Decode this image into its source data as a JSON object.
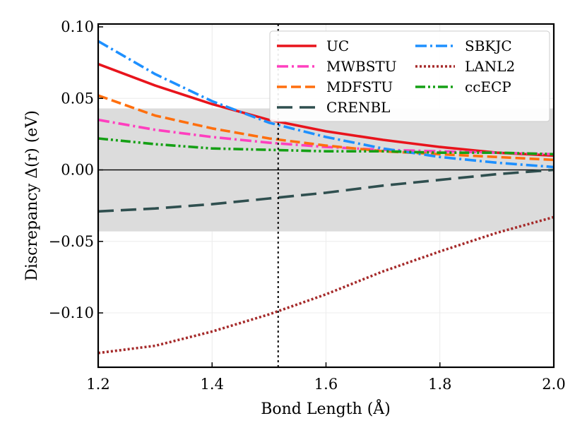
{
  "chart_data": {
    "type": "line",
    "title": "",
    "xlabel": "Bond Length (Å)",
    "ylabel": "Discrepancy Δ(r) (eV)",
    "xlim": [
      1.2,
      2.0
    ],
    "ylim": [
      -0.138,
      0.102
    ],
    "xticks": [
      1.2,
      1.4,
      1.6,
      1.8,
      2.0
    ],
    "xtick_labels": [
      "1.2",
      "1.4",
      "1.6",
      "1.8",
      "2.0"
    ],
    "yticks": [
      -0.1,
      -0.05,
      0.0,
      0.05,
      0.1
    ],
    "ytick_labels": [
      "−0.10",
      "−0.05",
      "0.00",
      "0.05",
      "0.10"
    ],
    "grid": true,
    "legend_position": "top-right",
    "shaded_band": {
      "y_low": -0.043,
      "y_high": 0.043,
      "color": "#dcdcdc"
    },
    "zero_line": 0.0,
    "vertical_line": {
      "x": 1.516,
      "style": "dotted"
    },
    "x": [
      1.2,
      1.3,
      1.4,
      1.5,
      1.6,
      1.7,
      1.8,
      1.9,
      2.0
    ],
    "series": [
      {
        "name": "UC",
        "color": "#e8141c",
        "dash": "solid",
        "values": [
          0.074,
          0.059,
          0.046,
          0.035,
          0.027,
          0.021,
          0.016,
          0.012,
          0.01
        ]
      },
      {
        "name": "MWBSTU",
        "color": "#ff3fbf",
        "dash": "dashdot",
        "values": [
          0.035,
          0.028,
          0.023,
          0.019,
          0.016,
          0.014,
          0.013,
          0.012,
          0.011
        ]
      },
      {
        "name": "MDFSTU",
        "color": "#ff6f0e",
        "dash": "dashed",
        "values": [
          0.052,
          0.038,
          0.029,
          0.022,
          0.017,
          0.013,
          0.011,
          0.009,
          0.007
        ]
      },
      {
        "name": "CRENBL",
        "color": "#2f4f4f",
        "dash": "longdash",
        "values": [
          -0.029,
          -0.027,
          -0.024,
          -0.02,
          -0.016,
          -0.011,
          -0.007,
          -0.003,
          0.0
        ]
      },
      {
        "name": "SBKJC",
        "color": "#1e90ff",
        "dash": "dashdot",
        "values": [
          0.09,
          0.067,
          0.048,
          0.033,
          0.023,
          0.015,
          0.009,
          0.005,
          0.002
        ]
      },
      {
        "name": "LANL2",
        "color": "#a52a2a",
        "dash": "dotted",
        "values": [
          -0.128,
          -0.123,
          -0.113,
          -0.101,
          -0.087,
          -0.071,
          -0.057,
          -0.044,
          -0.033
        ]
      },
      {
        "name": "ccECP",
        "color": "#15a015",
        "dash": "dashdotdot",
        "values": [
          0.022,
          0.018,
          0.015,
          0.014,
          0.013,
          0.013,
          0.012,
          0.012,
          0.011
        ]
      }
    ]
  }
}
